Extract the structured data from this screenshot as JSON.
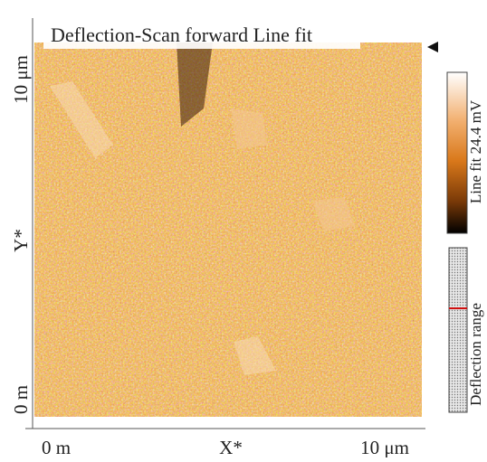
{
  "header": {
    "title": "Deflection-Scan forward Line fit"
  },
  "y_axis": {
    "labels": [
      "10 μm",
      "Y*",
      "0 m"
    ]
  },
  "x_axis": {
    "labels": [
      "0 m",
      "X*",
      "10 μm"
    ]
  },
  "colorbar": {
    "label": "Line fit 24.4 mV"
  },
  "range_bar": {
    "label": "Deflection range"
  }
}
